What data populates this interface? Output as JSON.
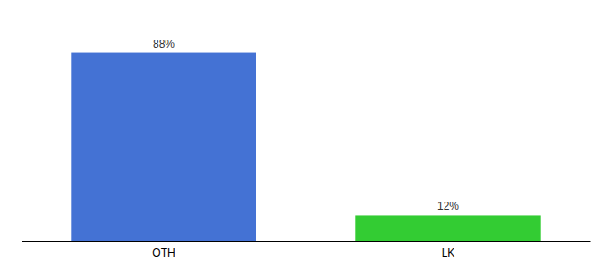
{
  "chart_data": {
    "type": "bar",
    "categories": [
      "OTH",
      "LK"
    ],
    "values": [
      88,
      12
    ],
    "value_labels": [
      "88%",
      "12%"
    ],
    "colors": [
      "#4472d4",
      "#33cc33"
    ],
    "ylim": [
      0,
      100
    ],
    "data_labels": true,
    "tick_labels": "x"
  }
}
